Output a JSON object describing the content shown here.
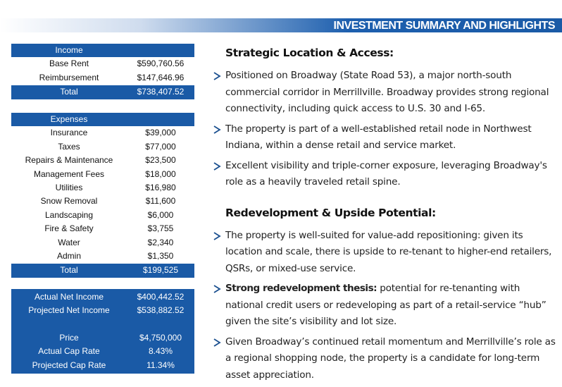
{
  "header": {
    "title": "INVESTMENT SUMMARY AND HIGHLIGHTS"
  },
  "income": {
    "header": "Income",
    "rows": [
      [
        "Base Rent",
        "$590,760.56"
      ],
      [
        "Reimbursement",
        "$147,646.96"
      ]
    ],
    "total": [
      "Total",
      "$738,407.52"
    ]
  },
  "expenses": {
    "header": "Expenses",
    "rows": [
      [
        "Insurance",
        "$39,000"
      ],
      [
        "Taxes",
        "$77,000"
      ],
      [
        "Repairs & Maintenance",
        "$23,500"
      ],
      [
        "Management Fees",
        "$18,000"
      ],
      [
        "Utilities",
        "$16,980"
      ],
      [
        "Snow Removal",
        "$11,600"
      ],
      [
        "Landscaping",
        "$6,000"
      ],
      [
        "Fire & Safety",
        "$3,755"
      ],
      [
        "Water",
        "$2,340"
      ],
      [
        "Admin",
        "$1,350"
      ]
    ],
    "total": [
      "Total",
      "$199,525"
    ]
  },
  "net_income": {
    "rows": [
      [
        "Actual Net Income",
        "$400,442.52"
      ],
      [
        "Projected Net Income",
        "$538,882.52"
      ]
    ]
  },
  "pricing": {
    "rows": [
      [
        "Price",
        "$4,750,000"
      ],
      [
        "Actual Cap Rate",
        "8.43%"
      ],
      [
        "Projected Cap Rate",
        "11.34%"
      ]
    ]
  },
  "sections": [
    {
      "heading": "Strategic Location & Access:",
      "bullets": [
        {
          "text": "Positioned on Broadway (State Road 53), a major north-south commercial corridor in Merrillville. Broadway provides strong regional connectivity, including quick access to U.S. 30 and I-65."
        },
        {
          "text": "The property is part of a well-established retail node in Northwest Indiana, within a dense retail and service market."
        },
        {
          "text": "Excellent visibility and triple-corner exposure, leveraging Broadway's role as a heavily traveled retail spine."
        }
      ]
    },
    {
      "heading": "Redevelopment & Upside Potential:",
      "bullets": [
        {
          "text": "The property is well-suited for value-add repositioning: given its location and scale, there is upside to re-tenant to higher-end retailers, QSRs, or mixed-use service."
        },
        {
          "bold": "Strong redevelopment thesis:",
          "text": "potential for re-tenanting with national credit users or redeveloping as part of a retail-service “hub” given the site’s visibility and lot size."
        },
        {
          "text": "Given Broadway’s continued retail momentum and Merrillville’s role as a regional shopping node, the property is a candidate for long-term asset appreciation."
        }
      ]
    }
  ]
}
